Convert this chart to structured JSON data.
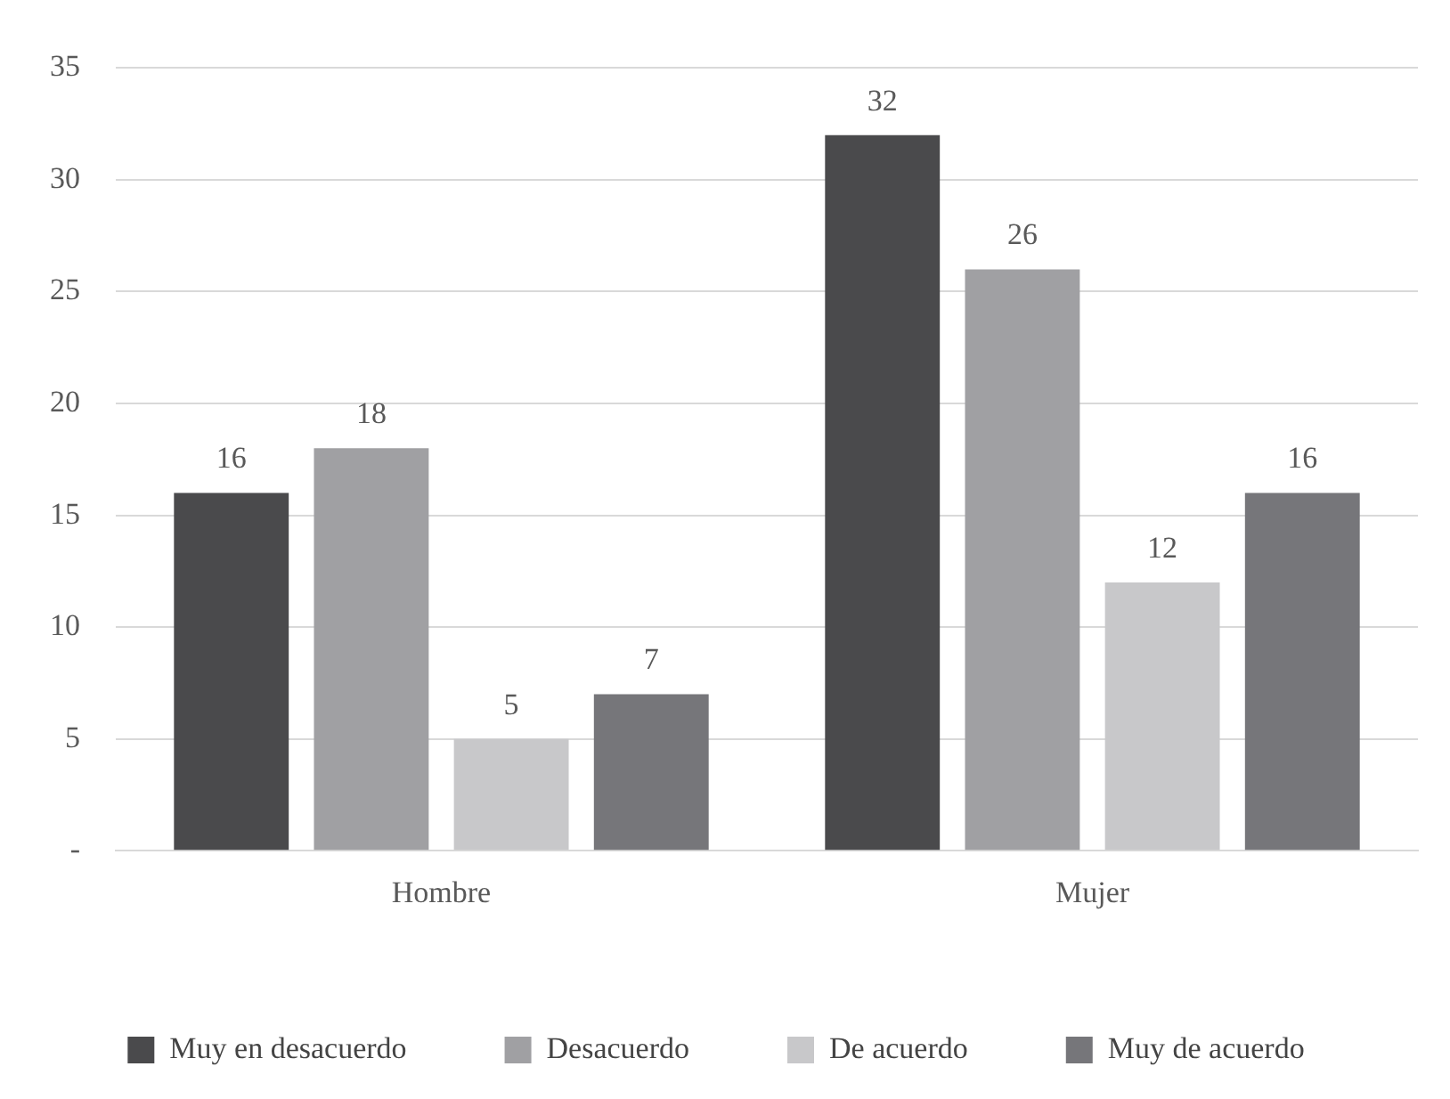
{
  "chart_data": {
    "type": "bar",
    "categories": [
      "Hombre",
      "Mujer"
    ],
    "series": [
      {
        "name": "Muy en desacuerdo",
        "color": "#4a4a4c",
        "values": [
          16,
          32
        ]
      },
      {
        "name": "Desacuerdo",
        "color": "#a0a0a3",
        "values": [
          18,
          26
        ]
      },
      {
        "name": "De acuerdo",
        "color": "#c8c8ca",
        "values": [
          5,
          12
        ]
      },
      {
        "name": "Muy de acuerdo",
        "color": "#76767a",
        "values": [
          7,
          16
        ]
      }
    ],
    "ylim": [
      0,
      35
    ],
    "yticks": [
      {
        "value": 0,
        "label": "-"
      },
      5,
      10,
      15,
      20,
      25,
      30,
      35
    ],
    "grid": "y",
    "legend": "bottom",
    "data_labels": true
  }
}
